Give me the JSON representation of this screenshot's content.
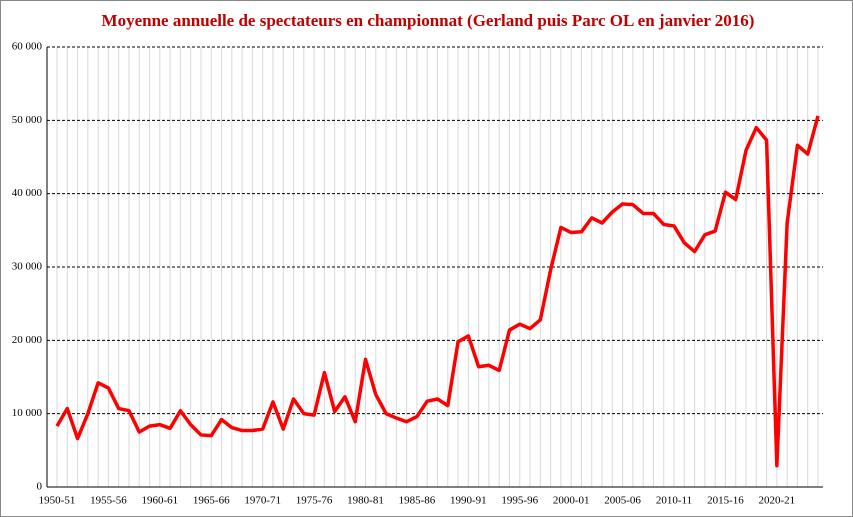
{
  "chart_data": {
    "type": "line",
    "title": "Moyenne annuelle de spectateurs en championnat (Gerland puis Parc OL en janvier 2016)",
    "categories": [
      "1950-51",
      null,
      null,
      null,
      null,
      "1955-56",
      null,
      null,
      null,
      null,
      "1960-61",
      null,
      null,
      null,
      null,
      "1965-66",
      null,
      null,
      null,
      null,
      "1970-71",
      null,
      null,
      null,
      null,
      "1975-76",
      null,
      null,
      null,
      null,
      "1980-81",
      null,
      null,
      null,
      null,
      "1985-86",
      null,
      null,
      null,
      null,
      "1990-91",
      null,
      null,
      null,
      null,
      "1995-96",
      null,
      null,
      null,
      null,
      "2000-01",
      null,
      null,
      null,
      null,
      "2005-06",
      null,
      null,
      null,
      null,
      "2010-11",
      null,
      null,
      null,
      null,
      "2015-16",
      null,
      null,
      null,
      null,
      "2020-21",
      null,
      null,
      null,
      null
    ],
    "series": [
      {
        "color": "#ff0000",
        "values": [
          8300,
          10700,
          6600,
          10000,
          14200,
          13500,
          10700,
          10400,
          7500,
          8300,
          8500,
          8000,
          10400,
          8500,
          7100,
          7000,
          9200,
          8100,
          7700,
          7700,
          7900,
          11600,
          7900,
          12000,
          10000,
          9800,
          15600,
          10300,
          12300,
          8900,
          17400,
          12600,
          10000,
          9400,
          8900,
          9600,
          11700,
          12000,
          11100,
          19800,
          20600,
          16400,
          16600,
          15900,
          21400,
          22200,
          21600,
          22800,
          29600,
          35400,
          34700,
          34800,
          36700,
          36000,
          37500,
          38600,
          38500,
          37300,
          37300,
          35800,
          35600,
          33300,
          32100,
          34400,
          34900,
          40200,
          39200,
          45900,
          49000,
          47300,
          2900,
          36000,
          46600,
          45400,
          50600
        ]
      }
    ],
    "ylim": [
      0,
      60000
    ],
    "yticks": [
      0,
      {
        "value": 10000,
        "label": "10 000"
      },
      {
        "value": 20000,
        "label": "20 000"
      },
      {
        "value": 30000,
        "label": "30 000"
      },
      {
        "value": 40000,
        "label": "40 000"
      },
      {
        "value": 50000,
        "label": "50 000"
      },
      {
        "value": 60000,
        "label": "60 000"
      }
    ],
    "grid": true
  }
}
